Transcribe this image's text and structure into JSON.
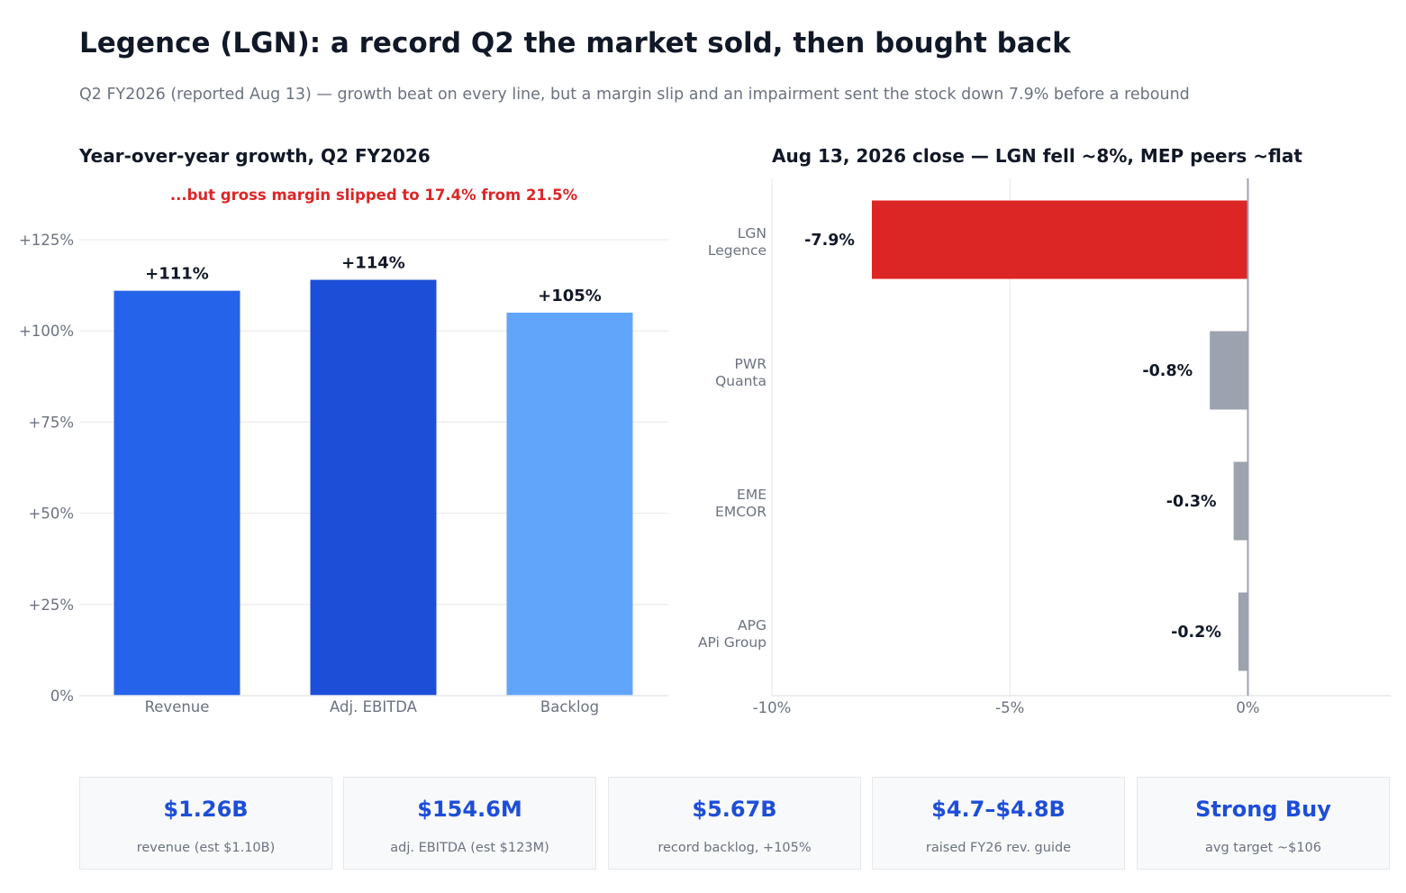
{
  "header": {
    "title": "Legence (LGN): a record Q2 the market sold, then bought back",
    "subtitle": "Q2 FY2026 (reported Aug 13) — growth beat on every line, but a margin slip and an impairment sent the stock down 7.9% before a rebound"
  },
  "colors": {
    "revenue": "#2563eb",
    "ebitda": "#1d4ed8",
    "backlog": "#60a5fa",
    "lgn": "#dc2626",
    "peer": "#9ca3af",
    "annotation": "#dc2626",
    "kpi_value": "#1d4ed8"
  },
  "chart_data": [
    {
      "type": "bar",
      "title": "Year-over-year growth, Q2 FY2026",
      "annotation": "...but gross margin slipped to 17.4% from 21.5%",
      "categories": [
        "Revenue",
        "Adj. EBITDA",
        "Backlog"
      ],
      "values": [
        111,
        114,
        105
      ],
      "data_labels": [
        "+111%",
        "+114%",
        "+105%"
      ],
      "ylim": [
        0,
        125
      ],
      "yticks": [
        0,
        25,
        50,
        75,
        100,
        125
      ],
      "ytick_labels": [
        "0%",
        "+25%",
        "+50%",
        "+75%",
        "+100%",
        "+125%"
      ],
      "grid": true,
      "xlabel": "",
      "ylabel": ""
    },
    {
      "type": "bar",
      "orientation": "horizontal",
      "title": "Aug 13, 2026 close — LGN fell ~8%, MEP peers ~flat",
      "categories": [
        {
          "ticker": "LGN",
          "name": "Legence"
        },
        {
          "ticker": "PWR",
          "name": "Quanta"
        },
        {
          "ticker": "EME",
          "name": "EMCOR"
        },
        {
          "ticker": "APG",
          "name": "APi Group"
        }
      ],
      "values": [
        -7.9,
        -0.8,
        -0.3,
        -0.2
      ],
      "data_labels": [
        "-7.9%",
        "-0.8%",
        "-0.3%",
        "-0.2%"
      ],
      "xlim": [
        -10,
        3
      ],
      "xticks": [
        -10,
        -5,
        0
      ],
      "xtick_labels": [
        "-10%",
        "-5%",
        "0%"
      ],
      "grid": true,
      "xlabel": "",
      "ylabel": ""
    }
  ],
  "kpis": [
    {
      "value": "$1.26B",
      "label": "revenue (est $1.10B)"
    },
    {
      "value": "$154.6M",
      "label": "adj. EBITDA (est $123M)"
    },
    {
      "value": "$5.67B",
      "label": "record backlog, +105%"
    },
    {
      "value": "$4.7–$4.8B",
      "label": "raised FY26 rev. guide"
    },
    {
      "value": "Strong Buy",
      "label": "avg target ~$106"
    }
  ]
}
